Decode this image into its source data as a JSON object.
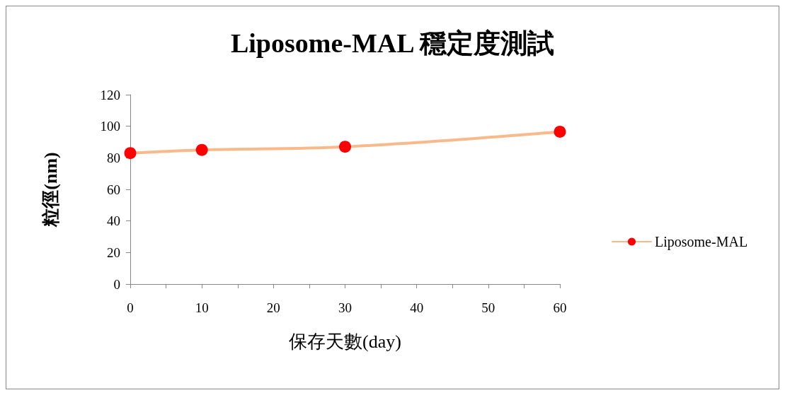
{
  "chart_data": {
    "type": "line",
    "title": "Liposome-MAL 穩定度測試",
    "xlabel": "保存天數(day)",
    "ylabel": "粒徑(nm)",
    "x": [
      0,
      10,
      30,
      60
    ],
    "series": [
      {
        "name": "Liposome-MAL",
        "color": "#f9b98a",
        "colors": [
          "#ff0000",
          "#ff0000",
          "#ff0000",
          "#ff0000"
        ],
        "values": [
          83,
          85,
          87,
          96.5
        ]
      }
    ],
    "xlim": [
      0,
      60
    ],
    "xticks": [
      0,
      {
        "value": 5,
        "label": null
      },
      10,
      {
        "value": 15,
        "label": null
      },
      20,
      {
        "value": 25,
        "label": null
      },
      30,
      {
        "value": 35,
        "label": null
      },
      40,
      {
        "value": 45,
        "label": null
      },
      50,
      {
        "value": 55,
        "label": null
      },
      60
    ],
    "ylim": [
      0,
      120
    ],
    "yticks": [
      0,
      20,
      40,
      60,
      80,
      100,
      120
    ],
    "grid": false,
    "legend": "right",
    "marker": "circle",
    "line_style": "solid"
  }
}
